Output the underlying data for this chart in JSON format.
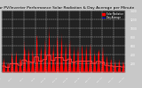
{
  "title": "Solar PV/Inverter Performance Solar Radiation & Day Average per Minute",
  "title_fontsize": 3.2,
  "background_color": "#c8c8c8",
  "plot_bg_color": "#222222",
  "bar_color": "#ff0000",
  "avg_line_color": "#4444ff",
  "avg_line_color2": "#ff4444",
  "grid_color": "#ffffff",
  "ylim": [
    0,
    1400
  ],
  "yticks": [
    200,
    400,
    600,
    800,
    1000,
    1200,
    1400
  ],
  "num_points": 1440,
  "days": 30,
  "legend_label1": "Solar Radiation",
  "legend_label2": "Day Average",
  "legend_color1": "#ff0000",
  "legend_color2": "#0000cc"
}
